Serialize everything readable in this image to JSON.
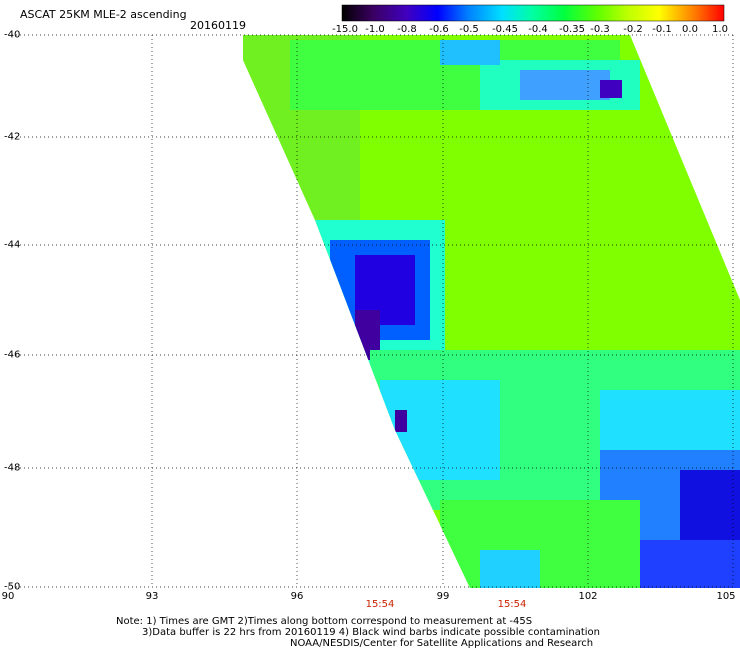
{
  "header": {
    "title": "ASCAT 25KM MLE-2 ascending",
    "date": "20160119"
  },
  "colorbar": {
    "labels": [
      "-15.0",
      "-1.0",
      "-0.8",
      "-0.6",
      "-0.5",
      "-0.45",
      "-0.4",
      "-0.35",
      "-0.3",
      "-0.2",
      "-0.1",
      "0.0",
      "1.0"
    ]
  },
  "axes": {
    "lat_labels": [
      "-40",
      "-42",
      "-44",
      "-46",
      "-48",
      "-50"
    ],
    "lon_labels": [
      "90",
      "93",
      "96",
      "99",
      "102",
      "105"
    ],
    "time_labels": [
      "15:54",
      "15:54"
    ]
  },
  "notes": {
    "line1": "Note: 1) Times are GMT 2)Times along bottom correspond to measurement at -45S",
    "line2": "3)Data buffer is 22 hrs from 20160119 4) Black wind barbs indicate possible contamination",
    "line3": "NOAA/NESDIS/Center for Satellite Applications and Research"
  },
  "colors": {
    "background_swath": "#80ff00",
    "grid": "#000000",
    "time_label": "#cc2200"
  }
}
